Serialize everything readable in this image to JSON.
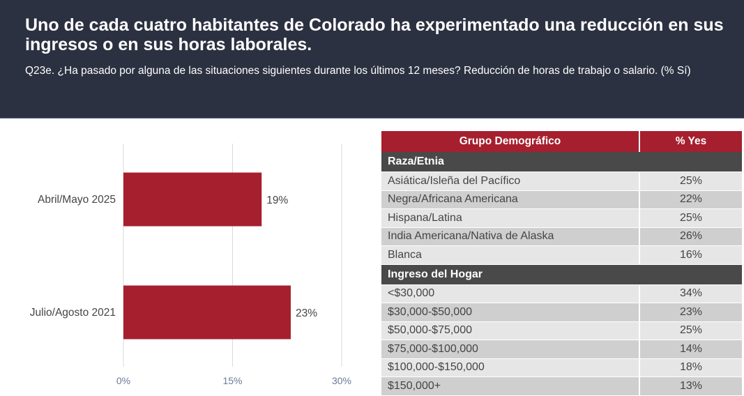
{
  "header": {
    "title": "Uno de cada cuatro habitantes de Colorado ha experimentado una reducción en sus ingresos o en sus horas laborales.",
    "subtitle": "Q23e. ¿Ha pasado por alguna de las situaciones siguientes durante los últimos 12 meses? Reducción de horas de trabajo o salario. (% Sí)"
  },
  "colors": {
    "header_bg": "#2c3141",
    "accent": "#a61f2e",
    "section_bg": "#494949"
  },
  "chart_data": {
    "type": "bar",
    "orientation": "horizontal",
    "categories": [
      "Abril/Mayo 2025",
      "Julio/Agosto 2021"
    ],
    "values": [
      19,
      23
    ],
    "value_labels": [
      "19%",
      "23%"
    ],
    "xlim": [
      0,
      30
    ],
    "xticks": [
      0,
      15,
      30
    ],
    "xtick_labels": [
      "0%",
      "15%",
      "30%"
    ],
    "grid": true,
    "bar_color": "#a61f2e"
  },
  "table": {
    "headers": [
      "Grupo Demográfico",
      "% Yes"
    ],
    "sections": [
      {
        "title": "Raza/Etnia",
        "rows": [
          {
            "label": "Asiática/Isleña del Pacífico",
            "value": "25%"
          },
          {
            "label": "Negra/Africana Americana",
            "value": "22%"
          },
          {
            "label": "Hispana/Latina",
            "value": "25%"
          },
          {
            "label": "India Americana/Nativa de Alaska",
            "value": "26%"
          },
          {
            "label": "Blanca",
            "value": "16%"
          }
        ]
      },
      {
        "title": "Ingreso del Hogar",
        "rows": [
          {
            "label": "<$30,000",
            "value": "34%"
          },
          {
            "label": "$30,000-$50,000",
            "value": "23%"
          },
          {
            "label": "$50,000-$75,000",
            "value": "25%"
          },
          {
            "label": "$75,000-$100,000",
            "value": "14%"
          },
          {
            "label": "$100,000-$150,000",
            "value": "18%"
          },
          {
            "label": "$150,000+",
            "value": "13%"
          }
        ]
      }
    ]
  }
}
